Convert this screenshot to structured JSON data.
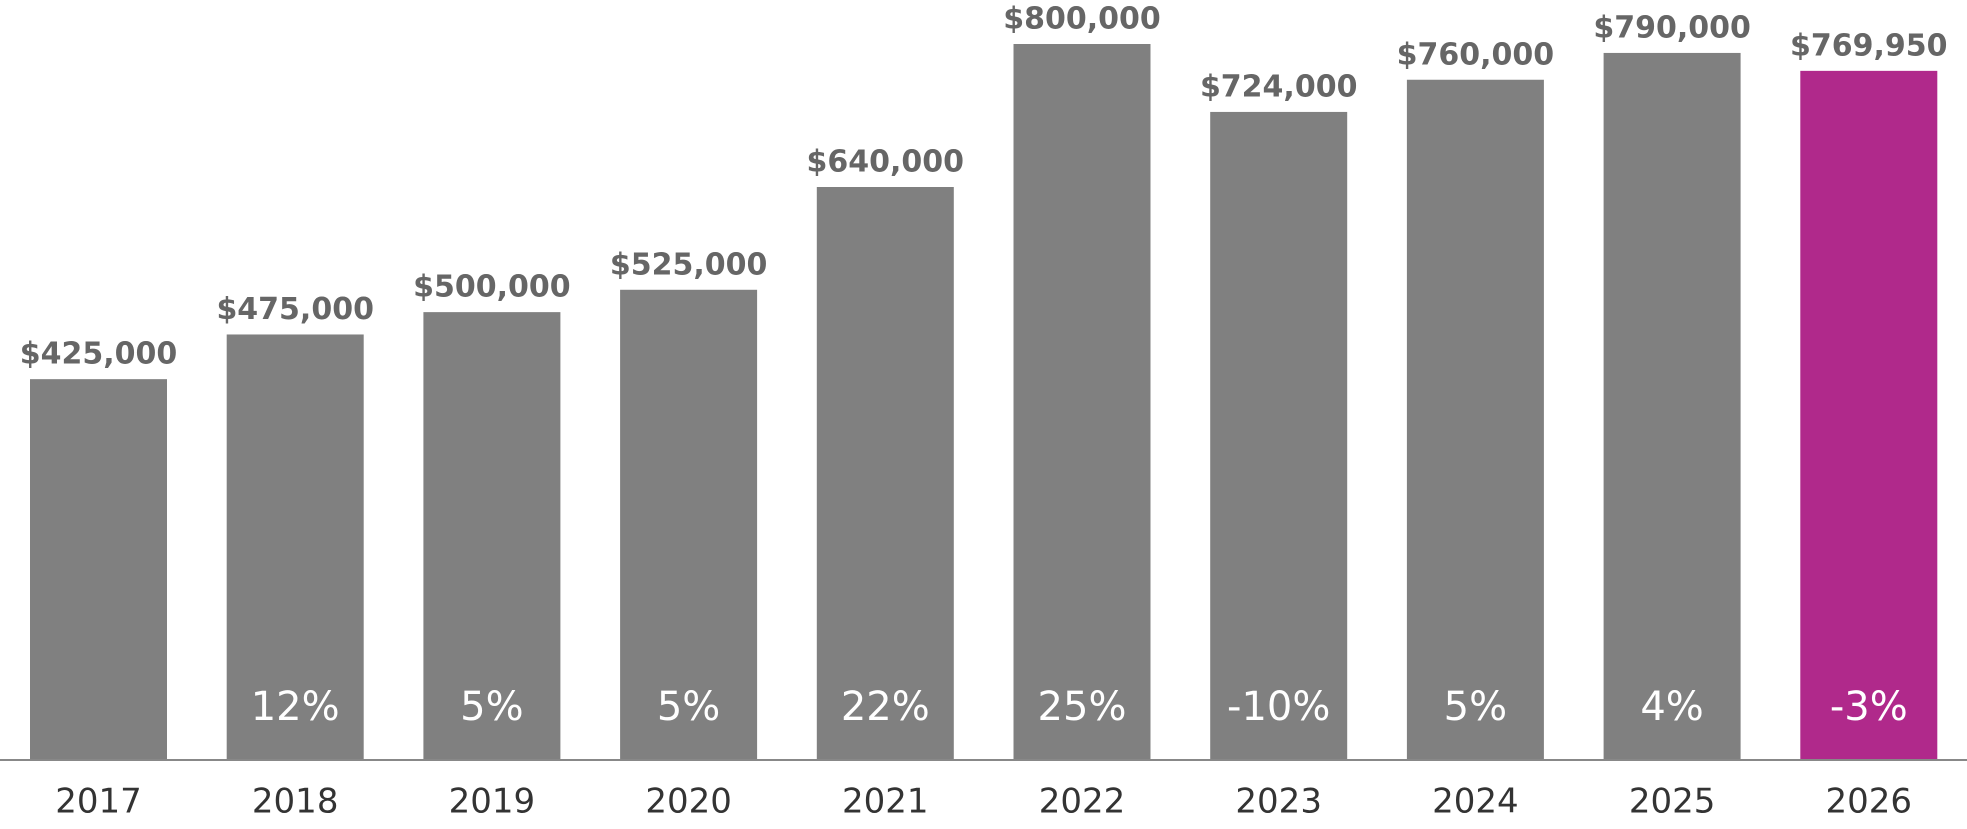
{
  "chart_data": {
    "type": "bar",
    "categories": [
      "2017",
      "2018",
      "2019",
      "2020",
      "2021",
      "2022",
      "2023",
      "2024",
      "2025",
      "2026"
    ],
    "values": [
      425000,
      475000,
      500000,
      525000,
      640000,
      800000,
      724000,
      760000,
      790000,
      769950
    ],
    "value_labels": [
      "$425,000",
      "$475,000",
      "$500,000",
      "$525,000",
      "$640,000",
      "$800,000",
      "$724,000",
      "$760,000",
      "$790,000",
      "$769,950"
    ],
    "colors": [
      "#808080",
      "#808080",
      "#808080",
      "#808080",
      "#808080",
      "#808080",
      "#808080",
      "#808080",
      "#808080",
      "#b0298b"
    ],
    "changes": {
      "values": [
        null,
        12,
        5,
        5,
        22,
        25,
        -10,
        5,
        4,
        -3
      ],
      "value_labels": [
        null,
        "12%",
        "5%",
        "5%",
        "22%",
        "25%",
        "-10%",
        "5%",
        "4%",
        "-3%"
      ]
    }
  }
}
